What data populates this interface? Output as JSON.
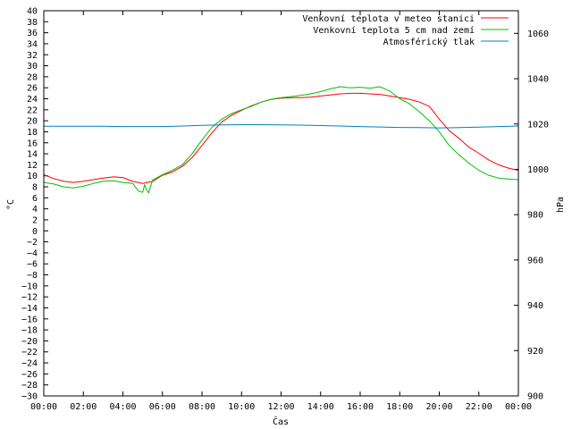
{
  "chart_data": {
    "type": "line",
    "title": "",
    "xlabel": "Čas",
    "ylabel": "°C",
    "y2label": "hPa",
    "xlim": [
      0,
      24
    ],
    "ylim": [
      -30,
      40
    ],
    "y2lim": [
      900,
      1070
    ],
    "grid": false,
    "legend_position": "top-right",
    "x_ticks": [
      {
        "v": 0,
        "label": "00:00"
      },
      {
        "v": 2,
        "label": "02:00"
      },
      {
        "v": 4,
        "label": "04:00"
      },
      {
        "v": 6,
        "label": "06:00"
      },
      {
        "v": 8,
        "label": "08:00"
      },
      {
        "v": 10,
        "label": "10:00"
      },
      {
        "v": 12,
        "label": "12:00"
      },
      {
        "v": 14,
        "label": "14:00"
      },
      {
        "v": 16,
        "label": "16:00"
      },
      {
        "v": 18,
        "label": "18:00"
      },
      {
        "v": 20,
        "label": "20:00"
      },
      {
        "v": 22,
        "label": "22:00"
      },
      {
        "v": 24,
        "label": "00:00"
      }
    ],
    "y_ticks": [
      40,
      38,
      36,
      34,
      32,
      30,
      28,
      26,
      24,
      22,
      20,
      18,
      16,
      14,
      12,
      10,
      8,
      6,
      4,
      2,
      0,
      -2,
      -4,
      -6,
      -8,
      -10,
      -12,
      -14,
      -16,
      -18,
      -20,
      -22,
      -24,
      -26,
      -28,
      -30
    ],
    "y_tick_labels": [
      "40",
      "38",
      "36",
      "34",
      "32",
      "30",
      "28",
      "26",
      "24",
      "22",
      "20",
      "18",
      "16",
      "14",
      "12",
      "10",
      "8",
      "6",
      "4",
      "2",
      "0",
      "−2",
      "−4",
      "−6",
      "−8",
      "−10",
      "−12",
      "−14",
      "−16",
      "−18",
      "−20",
      "−22",
      "−24",
      "−26",
      "−28",
      "−30"
    ],
    "y2_ticks": [
      900,
      920,
      940,
      960,
      980,
      1000,
      1020,
      1040,
      1060
    ],
    "y2_tick_labels": [
      "900",
      "920",
      "940",
      "960",
      "980",
      "1000",
      "1020",
      "1040",
      "1060"
    ],
    "series": [
      {
        "name": "Venkovní teplota v meteo stanici",
        "color": "#ff0000",
        "axis": "left",
        "x": [
          0,
          0.5,
          1,
          1.5,
          2,
          2.5,
          3,
          3.5,
          4,
          4.5,
          5,
          5.5,
          6,
          6.5,
          7,
          7.5,
          8,
          8.5,
          9,
          9.5,
          10,
          10.5,
          11,
          11.5,
          12,
          12.5,
          13,
          13.5,
          14,
          14.5,
          15,
          15.5,
          16,
          16.5,
          17,
          17.5,
          18,
          18.5,
          19,
          19.5,
          20,
          20.5,
          21,
          21.5,
          22,
          22.5,
          23,
          23.5,
          24
        ],
        "y": [
          10.2,
          9.5,
          9.0,
          8.8,
          9.0,
          9.3,
          9.6,
          9.8,
          9.7,
          9.0,
          8.6,
          9.0,
          10.1,
          10.7,
          11.7,
          13.3,
          15.5,
          17.8,
          19.8,
          21.0,
          21.9,
          22.7,
          23.4,
          23.9,
          24.1,
          24.2,
          24.2,
          24.3,
          24.5,
          24.7,
          24.9,
          25.0,
          25.0,
          24.9,
          24.8,
          24.5,
          24.2,
          23.9,
          23.4,
          22.6,
          20.3,
          18.2,
          16.8,
          15.2,
          14.1,
          12.9,
          12.0,
          11.4,
          11.0
        ]
      },
      {
        "name": "Venkovní teplota 5 cm nad zemí",
        "color": "#00c000",
        "axis": "left",
        "x": [
          0,
          0.5,
          1,
          1.5,
          2,
          2.5,
          3,
          3.5,
          4,
          4.5,
          4.8,
          5,
          5.1,
          5.2,
          5.3,
          5.5,
          6,
          6.5,
          7,
          7.5,
          8,
          8.5,
          9,
          9.5,
          10,
          10.5,
          11,
          11.5,
          12,
          12.5,
          13,
          13.5,
          14,
          14.5,
          15,
          15.5,
          16,
          16.5,
          17,
          17.5,
          18,
          18.5,
          19,
          19.5,
          20,
          20.5,
          21,
          21.5,
          22,
          22.5,
          23,
          23.5,
          24
        ],
        "y": [
          8.8,
          8.5,
          8.0,
          7.8,
          8.1,
          8.6,
          9.0,
          9.1,
          8.8,
          8.6,
          7.2,
          7.0,
          8.4,
          7.4,
          6.9,
          9.2,
          10.2,
          11.0,
          12.0,
          14.0,
          16.5,
          18.8,
          20.3,
          21.3,
          22.0,
          22.6,
          23.4,
          23.9,
          24.2,
          24.4,
          24.6,
          24.9,
          25.3,
          25.8,
          26.2,
          26.0,
          26.1,
          25.9,
          26.2,
          25.4,
          24.0,
          23.1,
          21.6,
          20.0,
          18.0,
          15.5,
          13.8,
          12.3,
          11.0,
          10.1,
          9.6,
          9.4,
          9.3
        ]
      },
      {
        "name": "Atmosférický tlak",
        "color": "#0080c0",
        "axis": "right",
        "x": [
          0,
          1,
          2,
          3,
          4,
          5,
          6,
          7,
          8,
          9,
          10,
          11,
          12,
          13,
          14,
          15,
          16,
          17,
          18,
          19,
          20,
          21,
          22,
          23,
          24
        ],
        "y": [
          1019.0,
          1019.0,
          1019.0,
          1019.0,
          1018.9,
          1018.9,
          1018.9,
          1019.1,
          1019.4,
          1019.6,
          1019.7,
          1019.7,
          1019.6,
          1019.5,
          1019.3,
          1019.1,
          1018.9,
          1018.7,
          1018.5,
          1018.4,
          1018.3,
          1018.4,
          1018.6,
          1018.9,
          1019.1
        ]
      }
    ]
  }
}
